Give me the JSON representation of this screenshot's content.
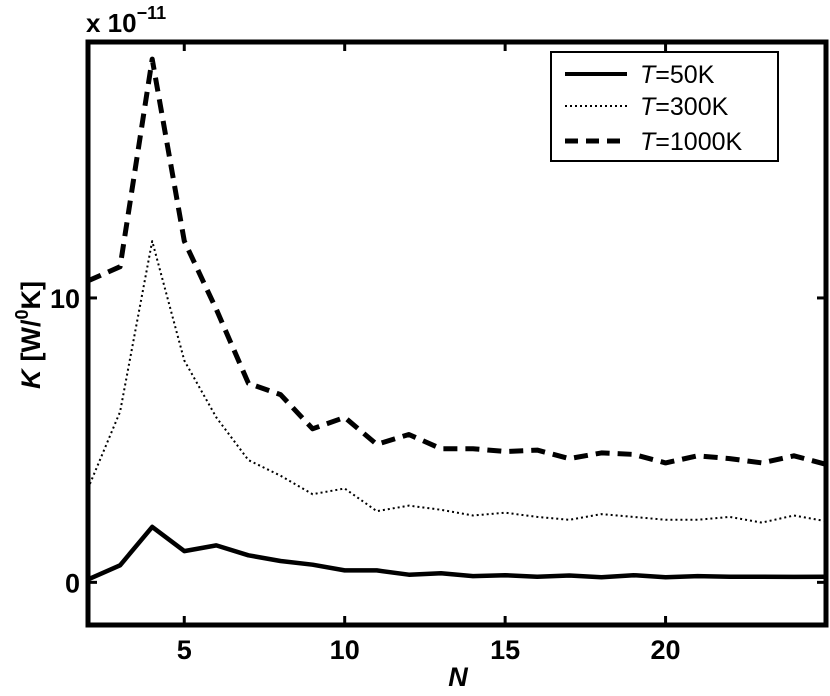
{
  "chart_data": {
    "type": "line",
    "multiplier": {
      "prefix": "x 10",
      "exponent": "−11"
    },
    "xlabel": "N",
    "ylabel": {
      "var": "K",
      "unit_open": "[W/",
      "unit_sup": "0",
      "unit_close": "K]"
    },
    "xlim": [
      2,
      25
    ],
    "ylim": [
      -1.5,
      19.0
    ],
    "x_ticks": [
      5,
      10,
      15,
      20
    ],
    "y_ticks": [
      0,
      10
    ],
    "grid": false,
    "legend_position": "top-right",
    "x": [
      2,
      3,
      4,
      5,
      6,
      7,
      8,
      9,
      10,
      11,
      12,
      13,
      14,
      15,
      16,
      17,
      18,
      19,
      20,
      21,
      22,
      23,
      24,
      25
    ],
    "series": [
      {
        "name_var": "T",
        "name_rest": "=50K",
        "style": "solid",
        "values": [
          0.1,
          0.6,
          1.95,
          1.1,
          1.3,
          0.95,
          0.75,
          0.62,
          0.42,
          0.42,
          0.27,
          0.32,
          0.22,
          0.25,
          0.2,
          0.24,
          0.18,
          0.25,
          0.18,
          0.22,
          0.2,
          0.2,
          0.19,
          0.2
        ]
      },
      {
        "name_var": "T",
        "name_rest": "=300K",
        "style": "dotted",
        "values": [
          3.3,
          6.0,
          12.0,
          7.8,
          5.8,
          4.3,
          3.75,
          3.1,
          3.3,
          2.5,
          2.7,
          2.55,
          2.35,
          2.45,
          2.3,
          2.2,
          2.4,
          2.3,
          2.2,
          2.2,
          2.3,
          2.1,
          2.35,
          2.15
        ]
      },
      {
        "name_var": "T",
        "name_rest": "=1000K",
        "style": "dashed",
        "values": [
          10.6,
          11.1,
          18.4,
          12.0,
          9.6,
          7.0,
          6.6,
          5.4,
          5.8,
          4.85,
          5.2,
          4.7,
          4.7,
          4.6,
          4.65,
          4.35,
          4.55,
          4.5,
          4.2,
          4.45,
          4.35,
          4.2,
          4.45,
          4.15
        ]
      }
    ]
  }
}
